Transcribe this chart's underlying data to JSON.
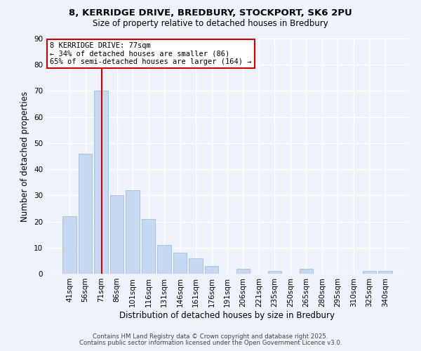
{
  "title_line1": "8, KERRIDGE DRIVE, BREDBURY, STOCKPORT, SK6 2PU",
  "title_line2": "Size of property relative to detached houses in Bredbury",
  "xlabel": "Distribution of detached houses by size in Bredbury",
  "ylabel": "Number of detached properties",
  "categories": [
    "41sqm",
    "56sqm",
    "71sqm",
    "86sqm",
    "101sqm",
    "116sqm",
    "131sqm",
    "146sqm",
    "161sqm",
    "176sqm",
    "191sqm",
    "206sqm",
    "221sqm",
    "235sqm",
    "250sqm",
    "265sqm",
    "280sqm",
    "295sqm",
    "310sqm",
    "325sqm",
    "340sqm"
  ],
  "values": [
    22,
    46,
    70,
    30,
    32,
    21,
    11,
    8,
    6,
    3,
    0,
    2,
    0,
    1,
    0,
    2,
    0,
    0,
    0,
    1,
    1
  ],
  "bar_color": "#c6d9f0",
  "bar_edge_color": "#a8c4e0",
  "vline_color": "#cc0000",
  "vline_index": 2,
  "ylim": [
    0,
    90
  ],
  "yticks": [
    0,
    10,
    20,
    30,
    40,
    50,
    60,
    70,
    80,
    90
  ],
  "annotation_line1": "8 KERRIDGE DRIVE: 77sqm",
  "annotation_line2": "← 34% of detached houses are smaller (86)",
  "annotation_line3": "65% of semi-detached houses are larger (164) →",
  "footer_line1": "Contains HM Land Registry data © Crown copyright and database right 2025.",
  "footer_line2": "Contains public sector information licensed under the Open Government Licence v3.0.",
  "background_color": "#eef2fa",
  "grid_color": "#ffffff",
  "annotation_box_color": "#ffffff",
  "annotation_box_edge": "#cc0000",
  "title_fontsize": 9.5,
  "subtitle_fontsize": 8.5,
  "tick_fontsize": 7.5,
  "label_fontsize": 8.5,
  "footer_fontsize": 6.2,
  "annot_fontsize": 7.5
}
